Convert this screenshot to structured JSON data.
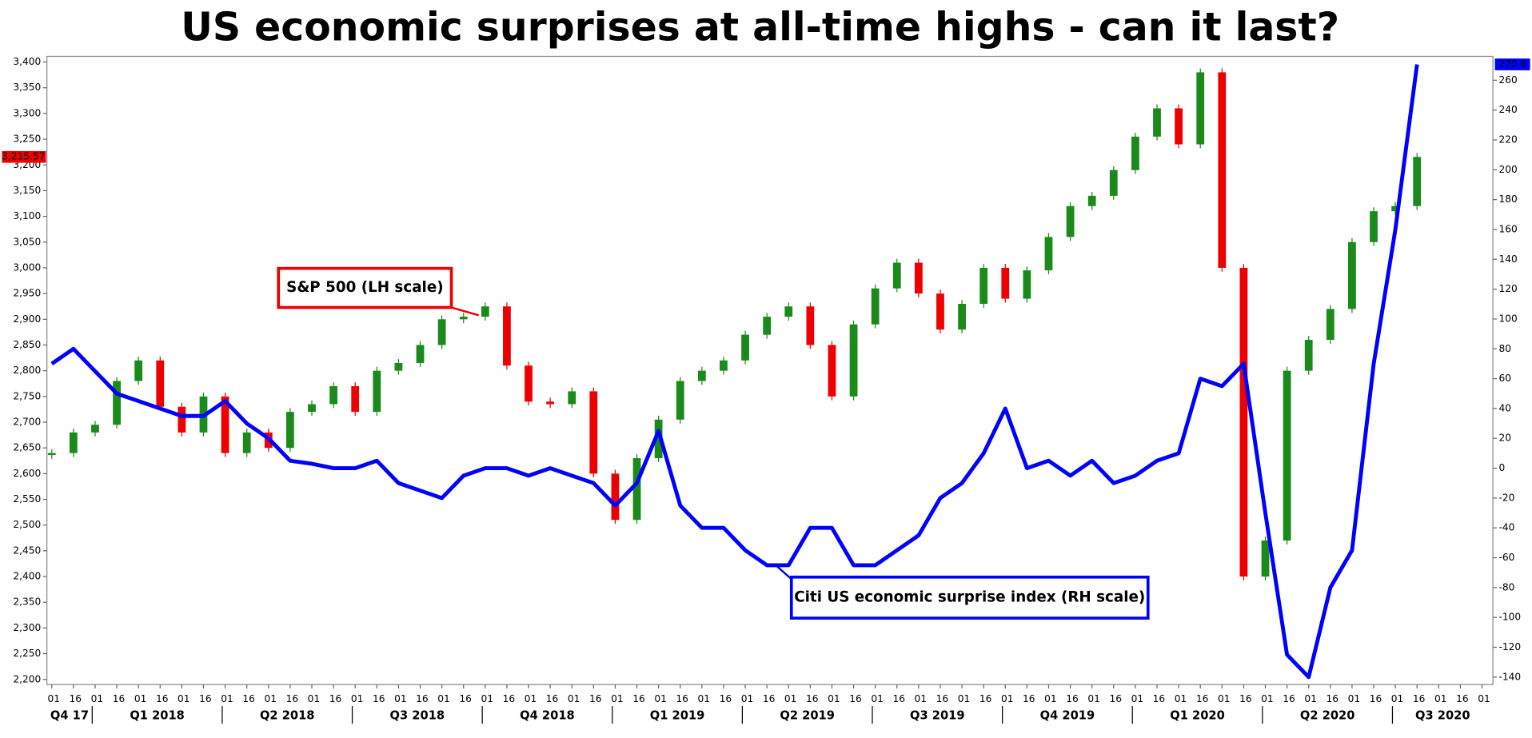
{
  "chart_data": {
    "type": "combo",
    "title": "US economic surprises at all-time highs - can it last?",
    "categories": [
      "01",
      "16",
      "01",
      "16",
      "01",
      "16",
      "01",
      "16",
      "01",
      "16",
      "01",
      "16",
      "01",
      "16",
      "01",
      "16",
      "01",
      "16",
      "01",
      "16",
      "01",
      "16",
      "01",
      "16",
      "01",
      "16",
      "01",
      "16",
      "01",
      "16",
      "01",
      "16",
      "01",
      "16",
      "01",
      "16",
      "01",
      "16",
      "01",
      "16",
      "01",
      "16",
      "01",
      "16",
      "01",
      "16",
      "01",
      "16",
      "01",
      "16",
      "01",
      "16",
      "01",
      "16",
      "01",
      "16",
      "01",
      "16",
      "01",
      "16",
      "01",
      "16",
      "01",
      "16",
      "01",
      "16",
      "01"
    ],
    "quarters": [
      "Q4 17",
      "Q1 2018",
      "Q2 2018",
      "Q3 2018",
      "Q4 2018",
      "Q1 2019",
      "Q2 2019",
      "Q3 2019",
      "Q4 2019",
      "Q1 2020",
      "Q2 2020",
      "Q3 2020"
    ],
    "ylim": [
      2190,
      3411
    ],
    "yticks": [
      {
        "value": 2200,
        "label": "2,200"
      },
      {
        "value": 2250,
        "label": "2,250"
      },
      {
        "value": 2300,
        "label": "2,300"
      },
      {
        "value": 2350,
        "label": "2,350"
      },
      {
        "value": 2400,
        "label": "2,400"
      },
      {
        "value": 2450,
        "label": "2,450"
      },
      {
        "value": 2500,
        "label": "2,500"
      },
      {
        "value": 2550,
        "label": "2,550"
      },
      {
        "value": 2600,
        "label": "2,600"
      },
      {
        "value": 2650,
        "label": "2,650"
      },
      {
        "value": 2700,
        "label": "2,700"
      },
      {
        "value": 2750,
        "label": "2,750"
      },
      {
        "value": 2800,
        "label": "2,800"
      },
      {
        "value": 2850,
        "label": "2,850"
      },
      {
        "value": 2900,
        "label": "2,900"
      },
      {
        "value": 2950,
        "label": "2,950"
      },
      {
        "value": 3000,
        "label": "3,000"
      },
      {
        "value": 3050,
        "label": "3,050"
      },
      {
        "value": 3100,
        "label": "3,100"
      },
      {
        "value": 3150,
        "label": "3,150"
      },
      {
        "value": 3200,
        "label": "3,200"
      },
      {
        "value": 3250,
        "label": "3,250"
      },
      {
        "value": 3300,
        "label": "3,300"
      },
      {
        "value": 3350,
        "label": "3,350"
      },
      {
        "value": 3400,
        "label": "3,400"
      }
    ],
    "y2lim": [
      -145,
      276
    ],
    "y2ticks": [
      -140,
      -120,
      -100,
      -80,
      -60,
      -40,
      -20,
      0,
      20,
      40,
      60,
      80,
      100,
      120,
      140,
      160,
      180,
      200,
      220,
      240,
      260
    ],
    "series": [
      {
        "name": "S&P 500 (LH scale)",
        "type": "candlestick",
        "axis": "y",
        "color": "#ee0000",
        "up_color": "#1a8a1a",
        "down_color": "#ee0000",
        "end_label": "3,215.57",
        "values": [
          2640,
          2680,
          2695,
          2780,
          2820,
          2730,
          2680,
          2750,
          2640,
          2680,
          2650,
          2720,
          2735,
          2770,
          2720,
          2800,
          2815,
          2850,
          2900,
          2905,
          2925,
          2810,
          2740,
          2735,
          2760,
          2600,
          2510,
          2630,
          2705,
          2780,
          2800,
          2820,
          2870,
          2905,
          2925,
          2850,
          2750,
          2890,
          2960,
          3010,
          2950,
          2880,
          2930,
          3000,
          2940,
          2995,
          3060,
          3120,
          3140,
          3190,
          3255,
          3310,
          3240,
          3380,
          3000,
          2400,
          2470,
          2800,
          2860,
          2920,
          3050,
          3110,
          3120,
          3215.57,
          null,
          null,
          null
        ]
      },
      {
        "name": "Citi US economic surprise index (RH scale)",
        "type": "line",
        "axis": "y2",
        "color": "#0000ff",
        "end_label": "270.6",
        "values": [
          70,
          80,
          65,
          50,
          45,
          40,
          35,
          35,
          45,
          30,
          20,
          5,
          3,
          0,
          0,
          5,
          -10,
          -15,
          -20,
          -5,
          0,
          0,
          -5,
          0,
          -5,
          -10,
          -25,
          -10,
          25,
          -25,
          -40,
          -40,
          -55,
          -65,
          -65,
          -40,
          -40,
          -65,
          -65,
          -55,
          -45,
          -20,
          -10,
          10,
          40,
          0,
          5,
          -5,
          5,
          -10,
          -5,
          5,
          10,
          60,
          55,
          70,
          -30,
          -125,
          -140,
          -80,
          -55,
          70,
          160,
          270.6,
          null,
          null,
          null
        ]
      }
    ]
  }
}
